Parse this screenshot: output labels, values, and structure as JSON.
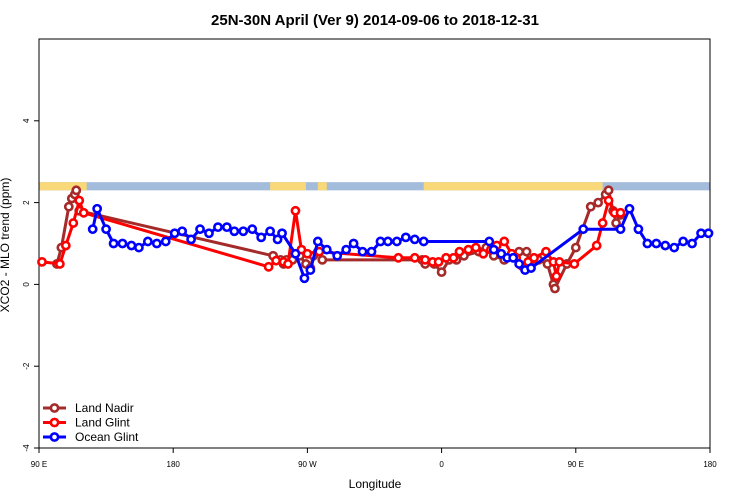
{
  "chart_data": {
    "type": "line",
    "title": "25N-30N April (Ver 9)   2014-09-06 to 2018-12-31",
    "xlabel": "Longitude",
    "ylabel": "XCO2 - MLO trend (ppm)",
    "xlim": [
      90,
      540
    ],
    "ylim": [
      -4,
      6
    ],
    "x_ticks": [
      {
        "value": 90,
        "label": "90 E"
      },
      {
        "value": 180,
        "label": "180"
      },
      {
        "value": 270,
        "label": "90 W"
      },
      {
        "value": 360,
        "label": "0"
      },
      {
        "value": 450,
        "label": "90 E"
      },
      {
        "value": 540,
        "label": "180"
      }
    ],
    "y_ticks": [
      {
        "value": -4,
        "label": "-4"
      },
      {
        "value": -2,
        "label": "-2"
      },
      {
        "value": 0,
        "label": "0"
      },
      {
        "value": 2,
        "label": "2"
      },
      {
        "value": 4,
        "label": "4"
      }
    ],
    "land_band": {
      "y_range": [
        2.3,
        2.5
      ],
      "ocean_color": "#a4bcdc",
      "land_color": "#f8d878",
      "land_segments": [
        [
          90,
          122
        ],
        [
          245,
          269
        ],
        [
          277,
          283
        ],
        [
          348,
          468
        ]
      ]
    },
    "legend_position": "bottom-left",
    "series": [
      {
        "name": "Land Nadir",
        "color": "#a52a2a",
        "x": [
          102,
          105,
          110,
          112,
          114,
          115,
          117,
          247,
          252,
          254,
          256,
          260,
          265,
          269,
          272,
          274,
          277,
          280,
          347,
          349,
          355,
          360,
          365,
          370,
          375,
          385,
          390,
          395,
          402,
          412,
          417,
          419,
          425,
          431,
          435,
          436,
          444,
          450,
          460,
          465,
          470,
          472,
          475,
          477,
          480
        ],
        "y": [
          0.5,
          0.9,
          1.9,
          2.1,
          2.2,
          2.3,
          1.8,
          0.7,
          0.6,
          0.5,
          0.6,
          0.6,
          0.7,
          0.5,
          0.4,
          0.7,
          0.8,
          0.6,
          0.6,
          0.5,
          0.5,
          0.3,
          0.6,
          0.6,
          0.7,
          0.8,
          0.9,
          0.7,
          0.6,
          0.8,
          0.8,
          0.5,
          0.6,
          0.5,
          0.0,
          -0.1,
          0.5,
          0.9,
          1.9,
          2.0,
          2.2,
          2.3,
          1.8,
          1.5,
          1.7
        ]
      },
      {
        "name": "Land Glint",
        "color": "#ff0000",
        "x": [
          92,
          104,
          108,
          113,
          117,
          120,
          244,
          249,
          254,
          257,
          262,
          266,
          270,
          278,
          331,
          342,
          349,
          354,
          358,
          363,
          368,
          372,
          378,
          383,
          388,
          393,
          397,
          402,
          407,
          410,
          414,
          418,
          422,
          430,
          435,
          437,
          439,
          449,
          464,
          468,
          472,
          476,
          480
        ],
        "y": [
          0.55,
          0.5,
          0.95,
          1.5,
          2.05,
          1.75,
          0.43,
          0.58,
          0.55,
          0.5,
          1.8,
          0.85,
          0.75,
          0.8,
          0.65,
          0.65,
          0.6,
          0.55,
          0.55,
          0.65,
          0.65,
          0.8,
          0.85,
          0.9,
          0.75,
          0.85,
          0.95,
          1.05,
          0.75,
          0.65,
          0.45,
          0.55,
          0.65,
          0.8,
          0.55,
          0.2,
          0.55,
          0.5,
          0.95,
          1.5,
          2.05,
          1.75,
          1.75
        ]
      },
      {
        "name": "Ocean Glint",
        "color": "#0000ff",
        "x": [
          126,
          129,
          135,
          140,
          146,
          152,
          157,
          163,
          169,
          175,
          181,
          186,
          192,
          198,
          204,
          210,
          216,
          221,
          227,
          233,
          239,
          245,
          250,
          253,
          262,
          268,
          272,
          277,
          283,
          290,
          296,
          301,
          307,
          313,
          319,
          324,
          330,
          336,
          342,
          348,
          392,
          395,
          400,
          404,
          408,
          412,
          416,
          420,
          455,
          480,
          486,
          492,
          498,
          504,
          510,
          516,
          522,
          528,
          534,
          539
        ],
        "y": [
          1.35,
          1.85,
          1.35,
          1.0,
          1.0,
          0.95,
          0.9,
          1.05,
          1.0,
          1.05,
          1.25,
          1.3,
          1.1,
          1.35,
          1.25,
          1.4,
          1.4,
          1.3,
          1.3,
          1.35,
          1.15,
          1.3,
          1.1,
          1.25,
          0.75,
          0.15,
          0.35,
          1.05,
          0.85,
          0.7,
          0.85,
          1.0,
          0.8,
          0.8,
          1.05,
          1.05,
          1.05,
          1.15,
          1.1,
          1.05,
          1.05,
          0.85,
          0.75,
          0.65,
          0.65,
          0.5,
          0.35,
          0.4,
          1.35,
          1.35,
          1.85,
          1.35,
          1.0,
          1.0,
          0.95,
          0.9,
          1.05,
          1.0,
          1.25,
          1.25
        ]
      }
    ]
  }
}
